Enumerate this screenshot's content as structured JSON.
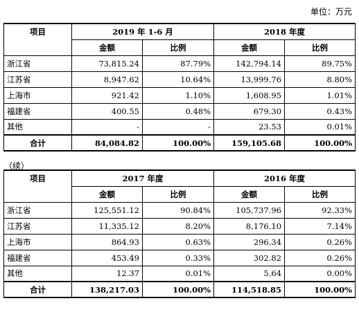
{
  "unit_label": "单位：万元",
  "continued_label": "（续）",
  "tables": [
    {
      "item_header": "项目",
      "periods": [
        "2019 年 1-6 月",
        "2018 年度"
      ],
      "subheaders": [
        "金额",
        "比例",
        "金额",
        "比例"
      ],
      "rows": [
        [
          "浙江省",
          "73,815.24",
          "87.79%",
          "142,794.14",
          "89.75%"
        ],
        [
          "江苏省",
          "8,947.62",
          "10.64%",
          "13,999.76",
          "8.80%"
        ],
        [
          "上海市",
          "921.42",
          "1.10%",
          "1,608.95",
          "1.01%"
        ],
        [
          "福建省",
          "400.55",
          "0.48%",
          "679.30",
          "0.43%"
        ],
        [
          "其他",
          "-",
          "-",
          "23.53",
          "0.01%"
        ]
      ],
      "total": [
        "合计",
        "84,084.82",
        "100.00%",
        "159,105.68",
        "100.00%"
      ]
    },
    {
      "item_header": "项目",
      "periods": [
        "2017 年度",
        "2016 年度"
      ],
      "subheaders": [
        "金额",
        "比例",
        "金额",
        "比例"
      ],
      "rows": [
        [
          "浙江省",
          "125,551.12",
          "90.84%",
          "105,737.96",
          "92.33%"
        ],
        [
          "江苏省",
          "11,335.12",
          "8.20%",
          "8,176.10",
          "7.14%"
        ],
        [
          "上海市",
          "864.93",
          "0.63%",
          "296.34",
          "0.26%"
        ],
        [
          "福建省",
          "453.49",
          "0.33%",
          "302.82",
          "0.26%"
        ],
        [
          "其他",
          "12.37",
          "0.01%",
          "5.64",
          "0.00%"
        ]
      ],
      "total": [
        "合计",
        "138,217.03",
        "100.00%",
        "114,518.85",
        "100.00%"
      ]
    }
  ]
}
